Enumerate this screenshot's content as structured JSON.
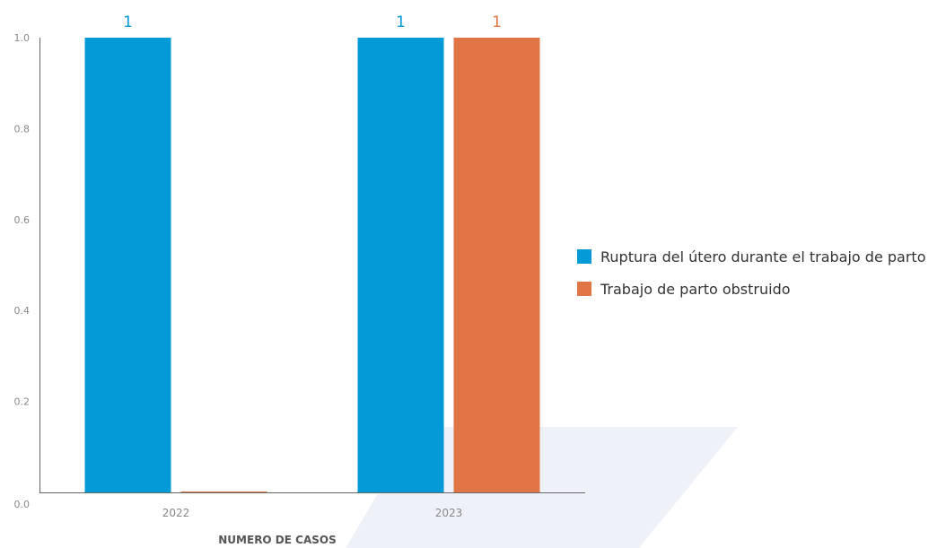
{
  "chart_data": {
    "type": "bar",
    "categories": [
      "2022",
      "2023"
    ],
    "series": [
      {
        "name": "Ruptura del útero durante el trabajo de parto",
        "values": [
          1,
          1
        ],
        "data_labels": [
          "1",
          "1"
        ],
        "color": "#0499D7"
      },
      {
        "name": "Trabajo de parto obstruido",
        "values": [
          0,
          1
        ],
        "data_labels": [
          "",
          "1"
        ],
        "color": "#E07645"
      }
    ],
    "title": "",
    "xlabel": "NUMERO DE CASOS",
    "ylabel": "",
    "ylim": [
      0,
      1.0
    ],
    "yticks": [
      "0.0",
      "0.2",
      "0.4",
      "0.6",
      "0.8",
      "1.0"
    ],
    "grid": false,
    "legend_position": "right"
  },
  "colors": {
    "axis": "#666666",
    "tick_label": "#888888",
    "watermark": "#eef2f8"
  }
}
